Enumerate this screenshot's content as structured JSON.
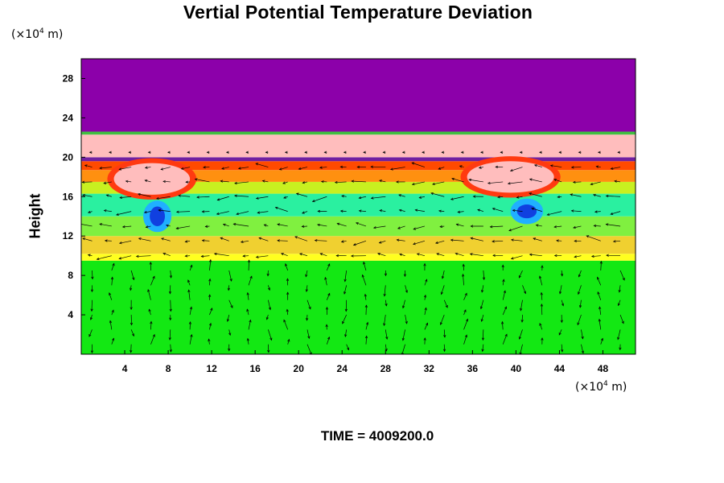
{
  "chart_data": {
    "type": "heatmap",
    "title": "Vertial Potential Temperature Deviation",
    "ylabel": "Height",
    "yunit": {
      "prefix": "(×10",
      "exp": "4",
      "suffix": " m)"
    },
    "xunit": {
      "prefix": "(×10",
      "exp": "4",
      "suffix": " m)"
    },
    "xlim": [
      0,
      51
    ],
    "ylim": [
      0,
      30
    ],
    "xticks": [
      4,
      8,
      12,
      16,
      20,
      24,
      28,
      32,
      36,
      40,
      44,
      48
    ],
    "yticks": [
      4,
      8,
      12,
      16,
      20,
      24,
      28
    ],
    "layers": [
      {
        "y0": 0,
        "y1": 9.5,
        "color": "#13e813"
      },
      {
        "y0": 9.5,
        "y1": 10.2,
        "color": "#ffff20"
      },
      {
        "y0": 10.2,
        "y1": 12.0,
        "color": "#f0d030"
      },
      {
        "y0": 12.0,
        "y1": 14.0,
        "color": "#80f040"
      },
      {
        "y0": 14.0,
        "y1": 16.3,
        "color": "#2af0a0"
      },
      {
        "y0": 16.3,
        "y1": 17.5,
        "color": "#c8f020"
      },
      {
        "y0": 17.5,
        "y1": 18.7,
        "color": "#ff9010"
      },
      {
        "y0": 18.7,
        "y1": 19.6,
        "color": "#ff4a00"
      },
      {
        "y0": 19.6,
        "y1": 20.0,
        "color": "#7020a0"
      },
      {
        "y0": 20.0,
        "y1": 22.3,
        "color": "#ffbdbd"
      },
      {
        "y0": 22.3,
        "y1": 22.6,
        "color": "#40c040"
      },
      {
        "y0": 22.6,
        "y1": 30.0,
        "color": "#8c00aa"
      }
    ],
    "features": [
      {
        "type": "warm",
        "x": 6.5,
        "y": 17.8,
        "rx": 3.5,
        "ry": 1.6,
        "color": "#ffbdbd"
      },
      {
        "type": "warm",
        "x": 39.5,
        "y": 18.0,
        "rx": 4.0,
        "ry": 1.6,
        "color": "#ffbdbd"
      },
      {
        "type": "cold",
        "x": 7.0,
        "y": 14.0,
        "rx": 0.7,
        "ry": 1.0,
        "color": "#1040e0"
      },
      {
        "type": "cold",
        "x": 41.0,
        "y": 14.5,
        "rx": 0.9,
        "ry": 0.7,
        "color": "#1040e0"
      }
    ],
    "vectors": "wind field arrows"
  },
  "footer": {
    "label": "TIME = ",
    "value": "4009200.0"
  }
}
